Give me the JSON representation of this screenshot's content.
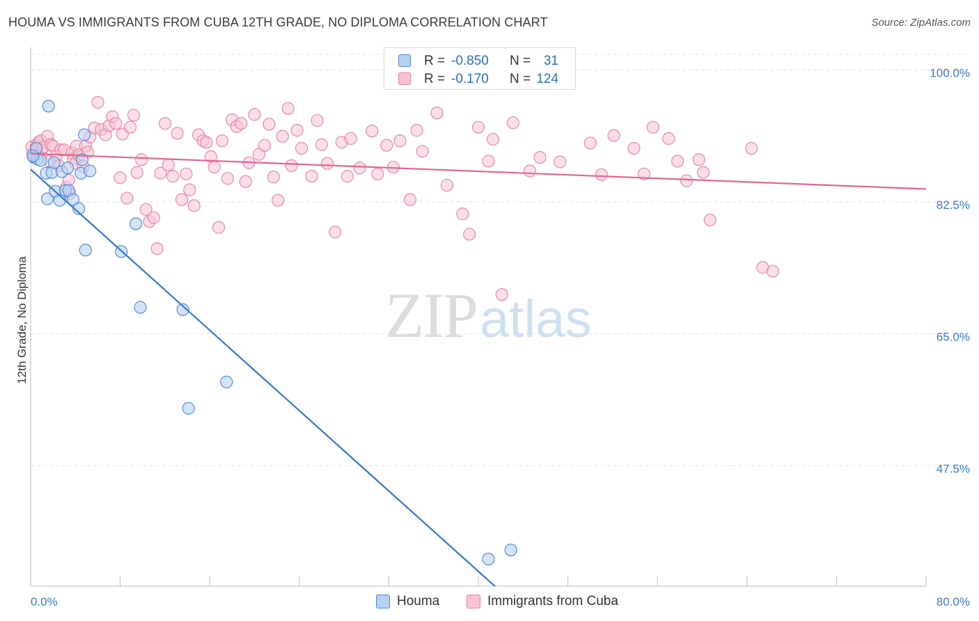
{
  "title": "HOUMA VS IMMIGRANTS FROM CUBA 12TH GRADE, NO DIPLOMA CORRELATION CHART",
  "source": "Source: ZipAtlas.com",
  "watermark": {
    "part1": "ZIP",
    "part2": "atlas"
  },
  "colors": {
    "houma_fill": "#b7d1f3",
    "houma_stroke": "#4a86d2",
    "houma_line": "#2f77d4",
    "cuba_fill": "#f7c3d3",
    "cuba_stroke": "#e87fa1",
    "cuba_line": "#e06592",
    "grid": "#e3e3e3",
    "axis": "#bbbbbb",
    "tick_label": "#3b78c8"
  },
  "legend_top": {
    "row1": {
      "r_label": "R =",
      "r_value": "-0.850",
      "n_label": "N =",
      "n_value": "31"
    },
    "row2": {
      "r_label": "R =",
      "r_value": "-0.170",
      "n_label": "N =",
      "n_value": "124"
    }
  },
  "chart_data": {
    "type": "scatter",
    "title": "HOUMA VS IMMIGRANTS FROM CUBA 12TH GRADE, NO DIPLOMA CORRELATION CHART",
    "xlabel": "",
    "ylabel": "12th Grade, No Diploma",
    "xlim": [
      0,
      80
    ],
    "ylim": [
      31.5,
      103
    ],
    "x_tick_labels": [
      "0.0%",
      "80.0%"
    ],
    "y_ticks": [
      100.0,
      82.5,
      65.0,
      47.5
    ],
    "y_tick_labels": [
      "100.0%",
      "82.5%",
      "65.0%",
      "47.5%"
    ],
    "grid": true,
    "legend": "bottom-center",
    "series": [
      {
        "name": "Houma",
        "x": [
          0.3,
          0.5,
          0.6,
          0.9,
          1.4,
          1.5,
          1.6,
          1.9,
          2.1,
          2.2,
          2.6,
          2.8,
          3.1,
          3.3,
          3.4,
          3.8,
          4.3,
          4.5,
          4.6,
          4.8,
          4.9,
          5.3,
          8.1,
          9.4,
          9.8,
          13.6,
          14.1,
          17.5,
          40.9,
          42.9,
          0.2
        ],
        "y": [
          88.4,
          89.6,
          88.2,
          88.0,
          86.3,
          82.9,
          95.2,
          86.4,
          87.7,
          83.9,
          82.7,
          86.5,
          84.0,
          87.0,
          84.0,
          82.8,
          81.6,
          86.3,
          88.1,
          91.4,
          76.1,
          86.6,
          75.9,
          79.6,
          68.5,
          68.2,
          55.1,
          58.6,
          35.1,
          36.3,
          88.6
        ]
      },
      {
        "name": "Immigrants from Cuba",
        "x": [
          0.1,
          0.2,
          0.5,
          0.6,
          0.7,
          0.9,
          1.0,
          1.2,
          1.5,
          1.7,
          1.8,
          2.0,
          2.3,
          2.5,
          2.7,
          3.0,
          3.2,
          3.4,
          3.5,
          3.7,
          3.8,
          4.0,
          4.1,
          4.3,
          4.7,
          4.9,
          5.1,
          5.3,
          5.7,
          6.0,
          6.3,
          6.7,
          7.0,
          7.3,
          7.6,
          8.0,
          8.2,
          8.6,
          8.9,
          9.2,
          9.5,
          9.9,
          10.3,
          10.6,
          11.0,
          11.3,
          11.6,
          12.0,
          12.3,
          12.7,
          13.1,
          13.5,
          13.9,
          14.2,
          14.6,
          15.0,
          15.4,
          15.7,
          16.1,
          16.4,
          16.8,
          17.1,
          17.6,
          18.0,
          18.4,
          18.8,
          19.2,
          19.5,
          20.0,
          20.4,
          20.9,
          21.3,
          21.7,
          22.1,
          22.5,
          23.0,
          23.3,
          23.8,
          24.2,
          25.1,
          25.6,
          26.0,
          26.5,
          27.2,
          27.8,
          28.3,
          28.6,
          29.4,
          30.5,
          31.0,
          31.8,
          32.4,
          33.0,
          33.9,
          34.5,
          35.0,
          36.3,
          37.2,
          38.6,
          39.2,
          40.0,
          40.9,
          41.3,
          42.1,
          43.1,
          44.6,
          45.5,
          47.3,
          48.1,
          50.0,
          51.0,
          52.1,
          53.9,
          54.8,
          55.6,
          57.0,
          57.8,
          58.6,
          59.7,
          60.1,
          60.7,
          64.4,
          65.4,
          66.3
        ],
        "y": [
          89.8,
          88.9,
          90.0,
          89.6,
          90.4,
          90.6,
          89.4,
          89.8,
          91.2,
          87.9,
          90.1,
          89.9,
          88.6,
          87.3,
          89.4,
          89.4,
          84.4,
          85.4,
          83.6,
          89.0,
          88.2,
          87.6,
          89.9,
          88.7,
          87.2,
          89.9,
          89.1,
          91.1,
          92.3,
          95.7,
          92.1,
          91.4,
          92.6,
          93.8,
          92.9,
          85.7,
          91.5,
          83.0,
          92.4,
          94.0,
          86.4,
          88.1,
          81.5,
          79.9,
          80.4,
          76.3,
          86.3,
          92.9,
          87.4,
          85.9,
          91.6,
          82.8,
          86.2,
          84.1,
          82.0,
          91.4,
          90.6,
          90.4,
          88.5,
          87.1,
          79.1,
          90.6,
          85.6,
          93.4,
          92.5,
          92.9,
          85.2,
          87.7,
          94.1,
          88.8,
          90.0,
          92.8,
          85.8,
          82.7,
          91.2,
          94.9,
          87.3,
          92.0,
          89.6,
          85.9,
          93.3,
          90.1,
          87.6,
          78.5,
          90.4,
          85.9,
          90.9,
          87.0,
          91.9,
          86.2,
          90.0,
          87.1,
          90.6,
          82.8,
          92.0,
          89.2,
          94.3,
          84.7,
          80.9,
          78.2,
          92.4,
          87.9,
          90.8,
          70.2,
          93.0,
          86.6,
          88.4,
          87.8,
          100.8,
          90.3,
          86.1,
          91.3,
          89.6,
          86.2,
          92.4,
          90.9,
          87.9,
          85.3,
          88.1,
          86.4,
          80.1,
          89.6,
          73.8,
          73.3
        ]
      }
    ],
    "trendlines": [
      {
        "series": "Houma",
        "x": [
          0,
          42
        ],
        "y": [
          86.8,
          30.8
        ]
      },
      {
        "series": "Immigrants from Cuba",
        "x": [
          0,
          80
        ],
        "y": [
          88.9,
          84.2
        ]
      }
    ]
  }
}
